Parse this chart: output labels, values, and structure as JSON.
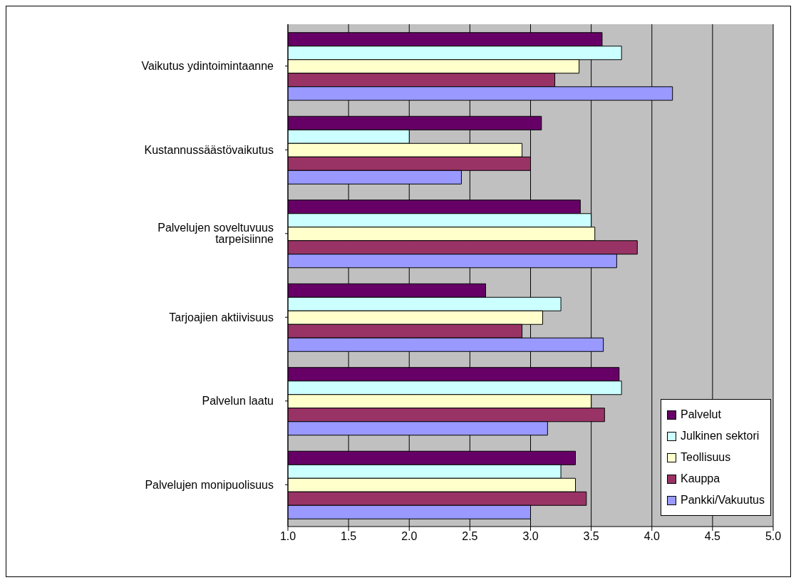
{
  "chart_data": {
    "type": "bar",
    "orientation": "horizontal",
    "categories": [
      "Vaikutus ydintoimintaanne",
      "Kustannussäästövaikutus",
      "Palvelujen soveltuvuus tarpeisiinne",
      "Tarjoajien aktiivisuus",
      "Palvelun laatu",
      "Palvelujen monipuolisuus"
    ],
    "series": [
      {
        "name": "Palvelut",
        "color": "#660066",
        "values": [
          3.59,
          3.09,
          3.41,
          2.63,
          3.73,
          3.37
        ]
      },
      {
        "name": "Julkinen sektori",
        "color": "#ccffff",
        "values": [
          3.75,
          2.0,
          3.5,
          3.25,
          3.75,
          3.25
        ]
      },
      {
        "name": "Teollisuus",
        "color": "#ffffcc",
        "values": [
          3.4,
          2.93,
          3.53,
          3.1,
          3.5,
          3.37
        ]
      },
      {
        "name": "Kauppa",
        "color": "#993366",
        "values": [
          3.2,
          3.0,
          3.88,
          2.93,
          3.61,
          3.46
        ]
      },
      {
        "name": "Pankki/Vakuutus",
        "color": "#9999ff",
        "values": [
          4.17,
          2.43,
          3.71,
          3.6,
          3.14,
          3.0
        ]
      }
    ],
    "xlim": [
      1,
      5
    ],
    "xticks": [
      {
        "value": 1,
        "label": "1.0"
      },
      {
        "value": 1.5,
        "label": "1.5"
      },
      {
        "value": 2,
        "label": "2.0"
      },
      {
        "value": 2.5,
        "label": "2.5"
      },
      {
        "value": 3,
        "label": "3.0"
      },
      {
        "value": 3.5,
        "label": "3.5"
      },
      {
        "value": 4,
        "label": "4.0"
      },
      {
        "value": 4.5,
        "label": "4.5"
      },
      {
        "value": 5,
        "label": "5.0"
      }
    ],
    "grid": "x",
    "legend": "bottom right"
  }
}
